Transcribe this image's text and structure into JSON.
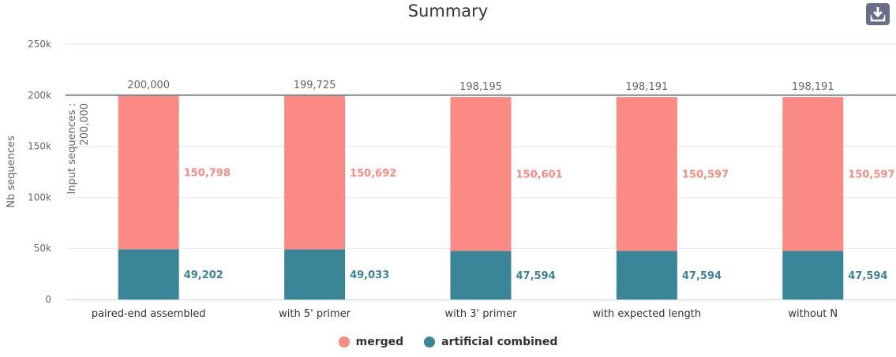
{
  "chart_data": {
    "type": "bar",
    "stacked": true,
    "title": "Summary",
    "xlabel": "",
    "ylabel": "Nb sequences",
    "ylim": [
      0,
      250000
    ],
    "yticks": [
      0,
      50000,
      100000,
      150000,
      200000,
      250000
    ],
    "ytick_labels": [
      "0",
      "50k",
      "100k",
      "150k",
      "200k",
      "250k"
    ],
    "categories": [
      "paired-end assembled",
      "with 5' primer",
      "with 3' primer",
      "with expected length",
      "without N"
    ],
    "series": [
      {
        "name": "artificial combined",
        "values": [
          49202,
          49033,
          47594,
          47594,
          47594
        ],
        "labels": [
          "49,202",
          "49,033",
          "47,594",
          "47,594",
          "47,594"
        ],
        "color": "#3a8597"
      },
      {
        "name": "merged",
        "values": [
          150798,
          150692,
          150601,
          150597,
          150597
        ],
        "labels": [
          "150,798",
          "150,692",
          "150,601",
          "150,597",
          "150,597"
        ],
        "color": "#fa8a83"
      }
    ],
    "totals": [
      "200,000",
      "199,725",
      "198,195",
      "198,191",
      "198,191"
    ],
    "reference_line": {
      "value": 200000,
      "label": "Input sequences :",
      "label2": "200,000",
      "color": "#7b8a8b"
    },
    "grid": true,
    "legend_position": "bottom-center",
    "legend": [
      {
        "name": "merged",
        "color": "#fa8a83"
      },
      {
        "name": "artificial combined",
        "color": "#3a8597"
      }
    ]
  },
  "toolbar": {
    "download_icon": "download-icon"
  }
}
